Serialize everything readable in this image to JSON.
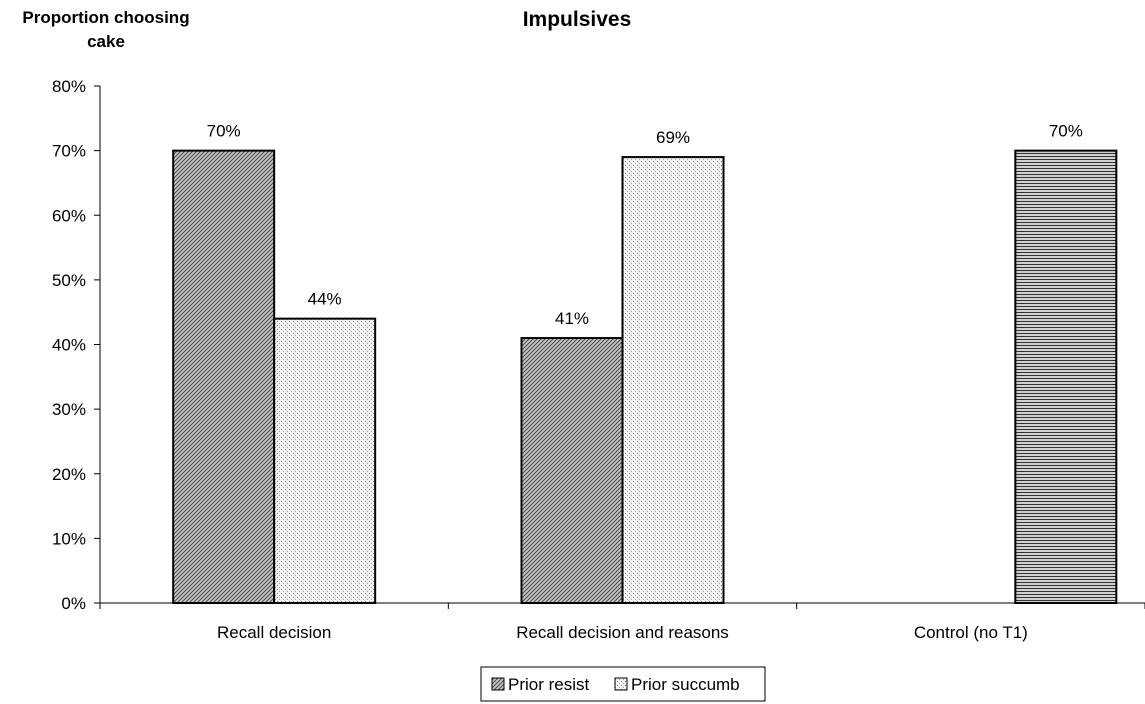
{
  "chart_data": {
    "type": "bar",
    "title": "Impulsives",
    "ylabel_line1": "Proportion choosing",
    "ylabel_line2": "cake",
    "xlabel": "",
    "categories": [
      "Recall decision",
      "Recall decision and reasons",
      "Control (no T1)"
    ],
    "series": [
      {
        "name": "Prior resist",
        "values": [
          0.7,
          0.41,
          null
        ],
        "pattern": "diag-hatch"
      },
      {
        "name": "Prior succumb",
        "values": [
          0.44,
          0.69,
          null
        ],
        "pattern": "dots"
      }
    ],
    "control": {
      "category": "Control (no T1)",
      "value": 0.7,
      "pattern": "horizontal-stripes"
    },
    "data_labels": {
      "prior_resist": [
        "70%",
        "41%",
        ""
      ],
      "prior_succumb": [
        "44%",
        "69%",
        ""
      ],
      "control": "70%"
    },
    "ylim": [
      0,
      0.8
    ],
    "yticks": [
      "0%",
      "10%",
      "20%",
      "30%",
      "40%",
      "50%",
      "60%",
      "70%",
      "80%"
    ],
    "grid": false,
    "legend_position": "bottom-center"
  }
}
